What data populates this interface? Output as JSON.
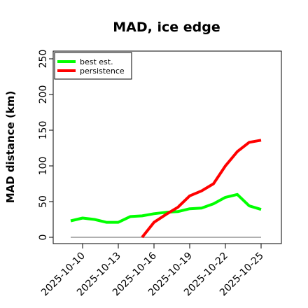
{
  "chart_data": {
    "type": "line",
    "title": "MAD, ice edge",
    "xlabel": "",
    "ylabel": "MAD distance (km)",
    "ylim": [
      0,
      250
    ],
    "yticks": [
      0,
      50,
      100,
      150,
      200,
      250
    ],
    "x": [
      "2025-10-09",
      "2025-10-10",
      "2025-10-11",
      "2025-10-12",
      "2025-10-13",
      "2025-10-14",
      "2025-10-15",
      "2025-10-16",
      "2025-10-17",
      "2025-10-18",
      "2025-10-19",
      "2025-10-20",
      "2025-10-21",
      "2025-10-22",
      "2025-10-23",
      "2025-10-24",
      "2025-10-25"
    ],
    "xticks": [
      "2025-10-10",
      "2025-10-13",
      "2025-10-16",
      "2025-10-19",
      "2025-10-22",
      "2025-10-25"
    ],
    "grid": false,
    "legend_position": "top-left",
    "series": [
      {
        "name": "best est.",
        "color": "#00ff00",
        "values": [
          23,
          27,
          25,
          21,
          21,
          29,
          30,
          33,
          35,
          36,
          40,
          41,
          47,
          56,
          60,
          44,
          39
        ]
      },
      {
        "name": "persistence",
        "color": "#ff0000",
        "values": [
          null,
          null,
          null,
          null,
          null,
          null,
          0,
          21,
          32,
          42,
          58,
          65,
          75,
          100,
          120,
          133,
          136
        ]
      },
      {
        "name": "",
        "color": "#808080",
        "values": [
          0,
          0,
          0,
          0,
          0,
          0,
          0,
          0,
          0,
          0,
          0,
          0,
          0,
          0,
          0,
          0,
          0
        ]
      }
    ]
  }
}
